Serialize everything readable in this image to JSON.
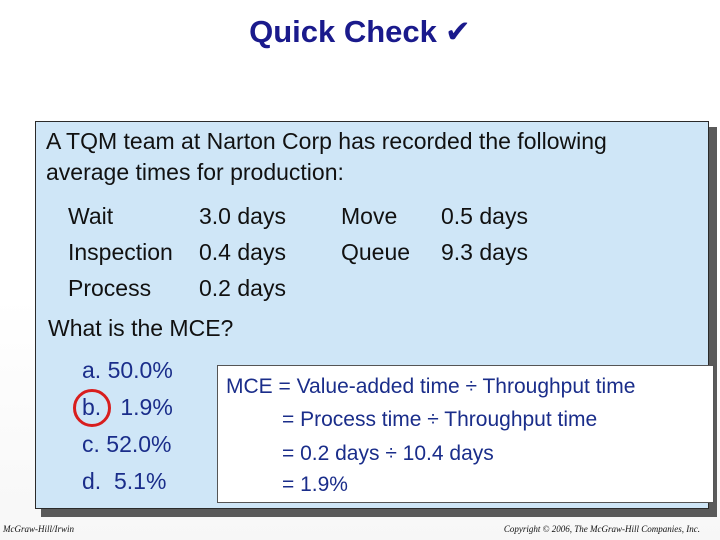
{
  "slide": {
    "title": "Quick Check",
    "title_icon": "check-icon",
    "title_icon_glyph": "✔",
    "intro": "A TQM team at Narton Corp has recorded the following average times for production:",
    "times": {
      "left": [
        {
          "label": "Wait",
          "value": "3.0 days"
        },
        {
          "label": "Inspection",
          "value": "0.4 days"
        },
        {
          "label": "Process",
          "value": "0.2 days"
        }
      ],
      "right": [
        {
          "label": "Move",
          "value": "0.5 days"
        },
        {
          "label": "Queue",
          "value": "9.3 days"
        }
      ]
    },
    "question": "What is the MCE?",
    "options": [
      {
        "letter": "a.",
        "text": "50.0%"
      },
      {
        "letter": "b.",
        "text": "1.9%"
      },
      {
        "letter": "c.",
        "text": "52.0%"
      },
      {
        "letter": "d.",
        "text": "5.1%"
      }
    ],
    "answer_lines": [
      "MCE = Value-added time ÷ Throughput time",
      "= Process time ÷ Throughput time",
      "= 0.2 days ÷ 10.4 days",
      "= 1.9%"
    ],
    "footer_left": "McGraw-Hill/Irwin",
    "footer_right": "Copyright © 2006, The McGraw-Hill Companies, Inc."
  },
  "colors": {
    "title": "#1a1a8c",
    "panel_bg": "#cfe6f7",
    "option_text": "#1a2d8a",
    "ring": "#d81e1e"
  }
}
